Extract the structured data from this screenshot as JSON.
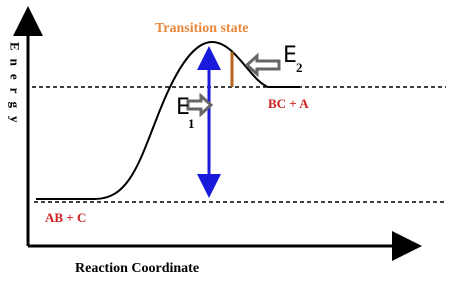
{
  "diagram": {
    "y_axis_label": "Energy",
    "x_axis_label": "Reaction Coordinate",
    "transition_state": "Transition state",
    "products": "BC + A",
    "reactants": "AB + C",
    "e1": {
      "symbol": "E",
      "subscript": "1"
    },
    "e2": {
      "symbol": "E",
      "subscript": "2"
    }
  }
}
